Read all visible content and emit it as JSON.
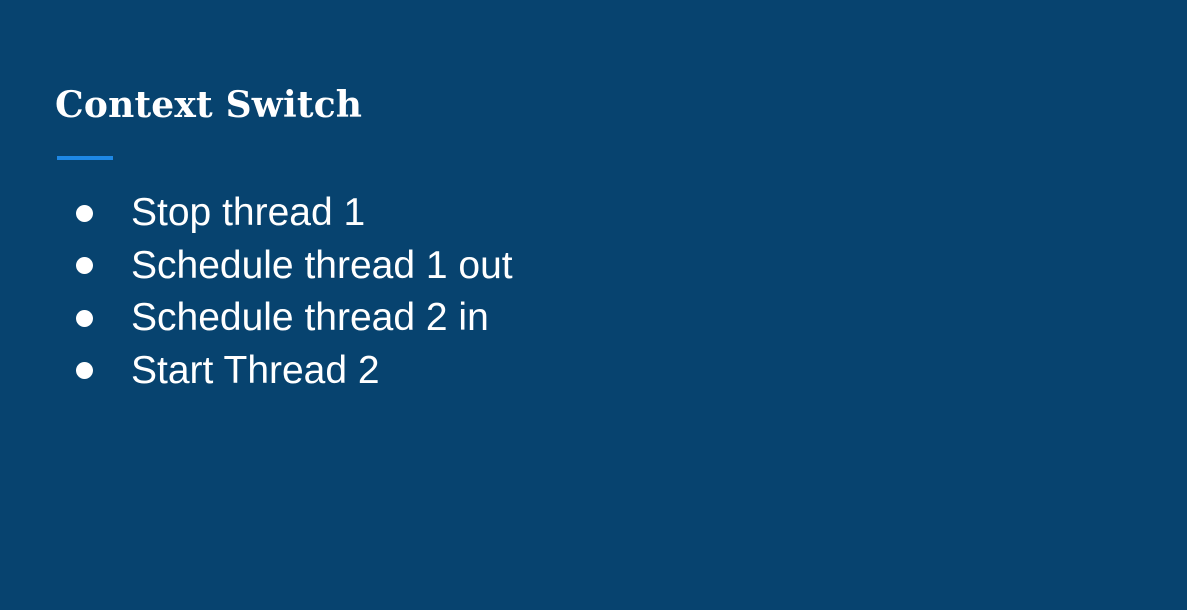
{
  "slide": {
    "title": "Context Switch",
    "bullets": [
      "Stop thread 1",
      "Schedule thread 1 out",
      "Schedule thread 2 in",
      "Start Thread 2"
    ]
  },
  "colors": {
    "background": "#07436f",
    "accent": "#1e88e5",
    "text": "#ffffff"
  }
}
